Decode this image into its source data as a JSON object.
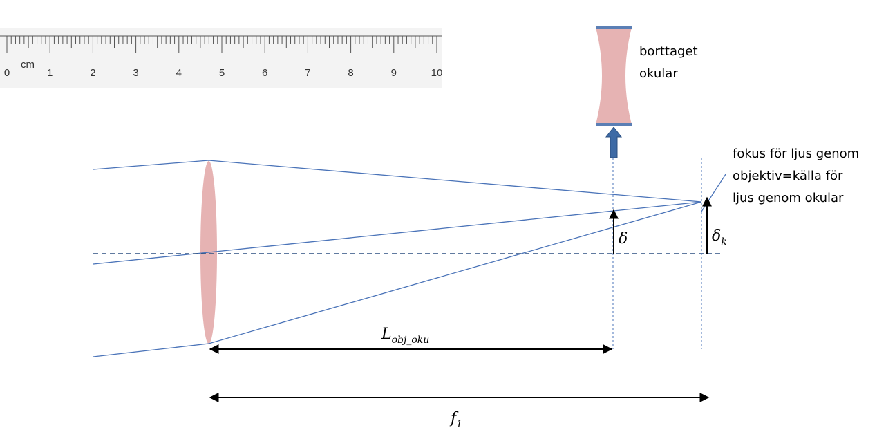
{
  "ruler": {
    "unit": "cm",
    "labels": [
      "0",
      "1",
      "2",
      "3",
      "4",
      "5",
      "6",
      "7",
      "8",
      "9",
      "10"
    ]
  },
  "removed_eyepiece": {
    "lines": [
      "borttaget",
      "okular"
    ]
  },
  "focus_note": {
    "lines": [
      "fokus för ljus genom",
      "objektiv=källa för",
      "ljus genom okular"
    ]
  },
  "symbols": {
    "delta": "δ",
    "delta_k": {
      "base": "δ",
      "sub": "k"
    },
    "L": {
      "base": "L",
      "sub": "obj_oku"
    },
    "f": {
      "base": "f",
      "sub": "1"
    }
  }
}
